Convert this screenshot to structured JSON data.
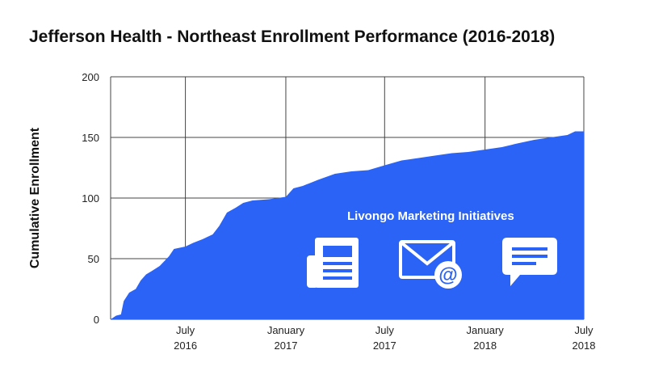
{
  "chart_data": {
    "type": "area",
    "title": "Jefferson Health - Northeast Enrollment Performance (2016-2018)",
    "ylabel": "Cumulative Enrollment",
    "xlabel": "",
    "ylim": [
      0,
      200
    ],
    "yticks": [
      0,
      50,
      100,
      150,
      200
    ],
    "xlim": [
      "2016-02-15",
      "2018-07-01"
    ],
    "xticks": [
      {
        "date": "2016-07-01",
        "line1": "July",
        "line2": "2016"
      },
      {
        "date": "2017-01-01",
        "line1": "January",
        "line2": "2017"
      },
      {
        "date": "2017-07-01",
        "line1": "July",
        "line2": "2017"
      },
      {
        "date": "2018-01-01",
        "line1": "January",
        "line2": "2018"
      },
      {
        "date": "2018-07-01",
        "line1": "July",
        "line2": "2018"
      }
    ],
    "grid": true,
    "series": [
      {
        "name": "",
        "color": "#2a63f5",
        "points": [
          [
            "2016-02-15",
            0
          ],
          [
            "2016-02-25",
            3
          ],
          [
            "2016-03-05",
            4
          ],
          [
            "2016-03-10",
            15
          ],
          [
            "2016-03-20",
            22
          ],
          [
            "2016-04-01",
            25
          ],
          [
            "2016-04-10",
            32
          ],
          [
            "2016-04-20",
            37
          ],
          [
            "2016-05-01",
            40
          ],
          [
            "2016-05-15",
            44
          ],
          [
            "2016-06-01",
            52
          ],
          [
            "2016-06-10",
            58
          ],
          [
            "2016-07-01",
            60
          ],
          [
            "2016-07-15",
            63
          ],
          [
            "2016-08-01",
            66
          ],
          [
            "2016-08-20",
            70
          ],
          [
            "2016-09-01",
            77
          ],
          [
            "2016-09-15",
            88
          ],
          [
            "2016-10-01",
            92
          ],
          [
            "2016-10-15",
            96
          ],
          [
            "2016-11-01",
            98
          ],
          [
            "2016-12-01",
            99
          ],
          [
            "2017-01-01",
            101
          ],
          [
            "2017-01-15",
            108
          ],
          [
            "2017-02-01",
            110
          ],
          [
            "2017-03-01",
            115
          ],
          [
            "2017-04-01",
            120
          ],
          [
            "2017-05-01",
            122
          ],
          [
            "2017-06-01",
            123
          ],
          [
            "2017-07-01",
            127
          ],
          [
            "2017-08-01",
            131
          ],
          [
            "2017-09-01",
            133
          ],
          [
            "2017-10-01",
            135
          ],
          [
            "2017-11-01",
            137
          ],
          [
            "2017-12-01",
            138
          ],
          [
            "2018-01-01",
            140
          ],
          [
            "2018-02-01",
            142
          ],
          [
            "2018-03-01",
            145
          ],
          [
            "2018-04-01",
            148
          ],
          [
            "2018-05-01",
            150
          ],
          [
            "2018-06-01",
            152
          ],
          [
            "2018-06-15",
            155
          ],
          [
            "2018-07-01",
            155
          ]
        ]
      }
    ],
    "annotation": "Livongo Marketing Initiatives",
    "annotation_icons": [
      "newspaper-icon",
      "email-at-icon",
      "chat-message-icon"
    ],
    "grid_color": "#444444",
    "overlay_color": "#ffffff"
  }
}
